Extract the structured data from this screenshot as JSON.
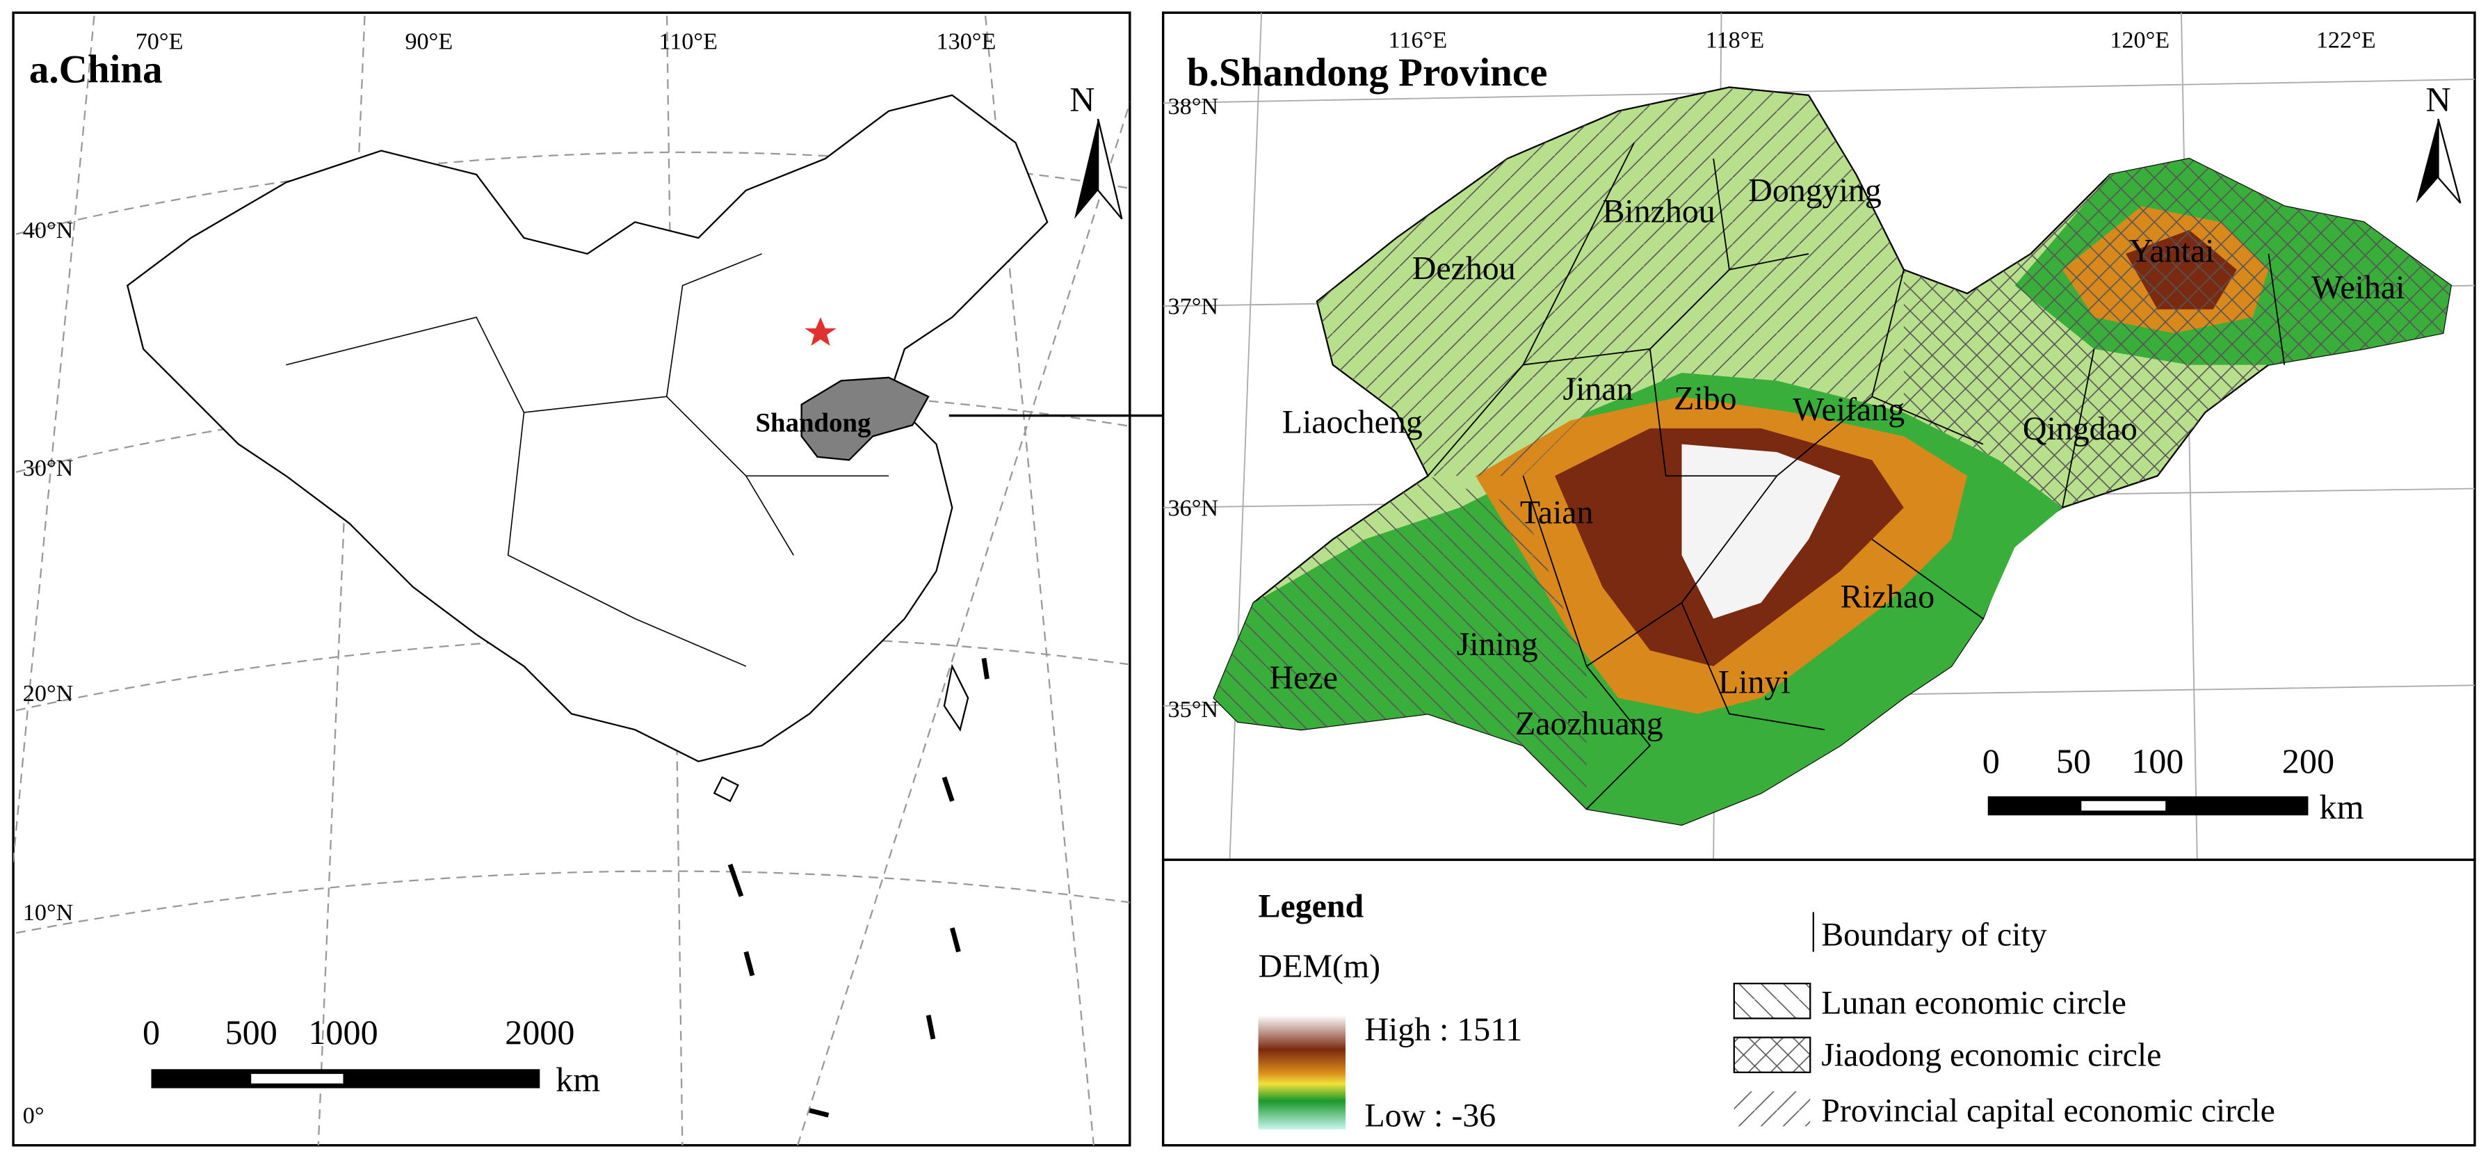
{
  "panel_a": {
    "title": "a.China",
    "lon_labels": [
      "70°E",
      "90°E",
      "110°E",
      "130°E"
    ],
    "lat_labels": [
      "40°N",
      "30°N",
      "20°N",
      "10°N",
      "0°"
    ],
    "province_label": "Shandong",
    "north": "N",
    "scale_ticks": [
      0,
      500,
      1000,
      2000
    ],
    "scale_unit": "km"
  },
  "panel_b": {
    "title": "b.Shandong Province",
    "lon_labels": [
      "116°E",
      "118°E",
      "120°E",
      "122°E"
    ],
    "lat_labels": [
      "38°N",
      "37°N",
      "36°N",
      "35°N"
    ],
    "cities": [
      "Binzhou",
      "Dongying",
      "Dezhou",
      "Yantai",
      "Weihai",
      "Jinan",
      "Zibo",
      "Weifang",
      "Liaocheng",
      "Qingdao",
      "Taian",
      "Rizhao",
      "Jining",
      "Heze",
      "Linyi",
      "Zaozhuang"
    ],
    "north": "N",
    "scale_ticks": [
      0,
      50,
      100,
      200
    ],
    "scale_unit": "km"
  },
  "legend": {
    "title": "Legend",
    "dem_label": "DEM(m)",
    "high": "High : 1511",
    "low": "Low : -36",
    "items": [
      "Boundary of city",
      "Lunan economic circle",
      "Jiaodong economic circle",
      "Provincial capital economic circle"
    ]
  }
}
